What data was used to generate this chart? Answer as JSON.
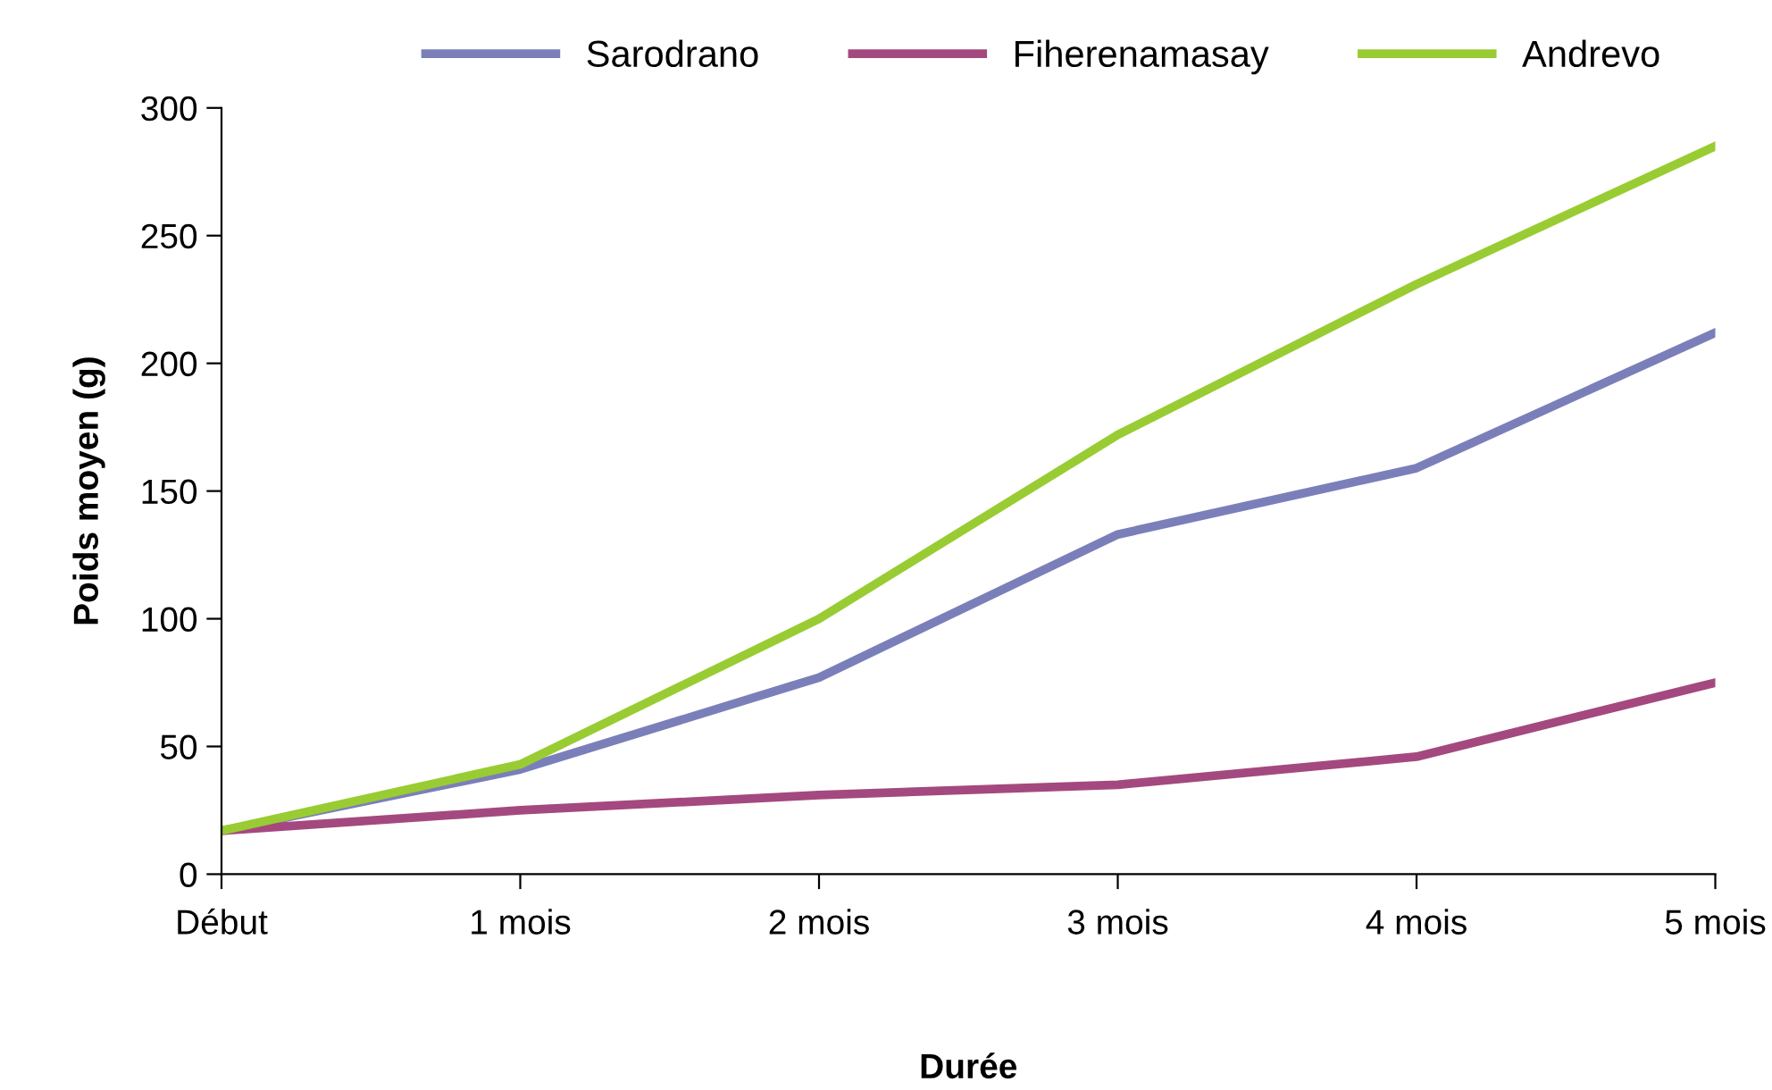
{
  "chart_data": {
    "type": "line",
    "xlabel": "Durée",
    "ylabel": "Poids moyen (g)",
    "categories": [
      "Début",
      "1 mois",
      "2 mois",
      "3 mois",
      "4 mois",
      "5 mois"
    ],
    "series": [
      {
        "name": "Sarodrano",
        "color": "#7b7fb9",
        "values": [
          17,
          41,
          77,
          133,
          159,
          212
        ]
      },
      {
        "name": "Fiherenamasay",
        "color": "#a4497f",
        "values": [
          17,
          25,
          31,
          35,
          46,
          75
        ]
      },
      {
        "name": "Andrevo",
        "color": "#99cc33",
        "values": [
          17,
          43,
          100,
          172,
          231,
          285
        ]
      }
    ],
    "ylim": [
      0,
      300
    ],
    "yticks": [
      0,
      50,
      100,
      150,
      200,
      250,
      300
    ],
    "grid": false,
    "legend": "top",
    "marker": "none",
    "line_style": "solid"
  }
}
